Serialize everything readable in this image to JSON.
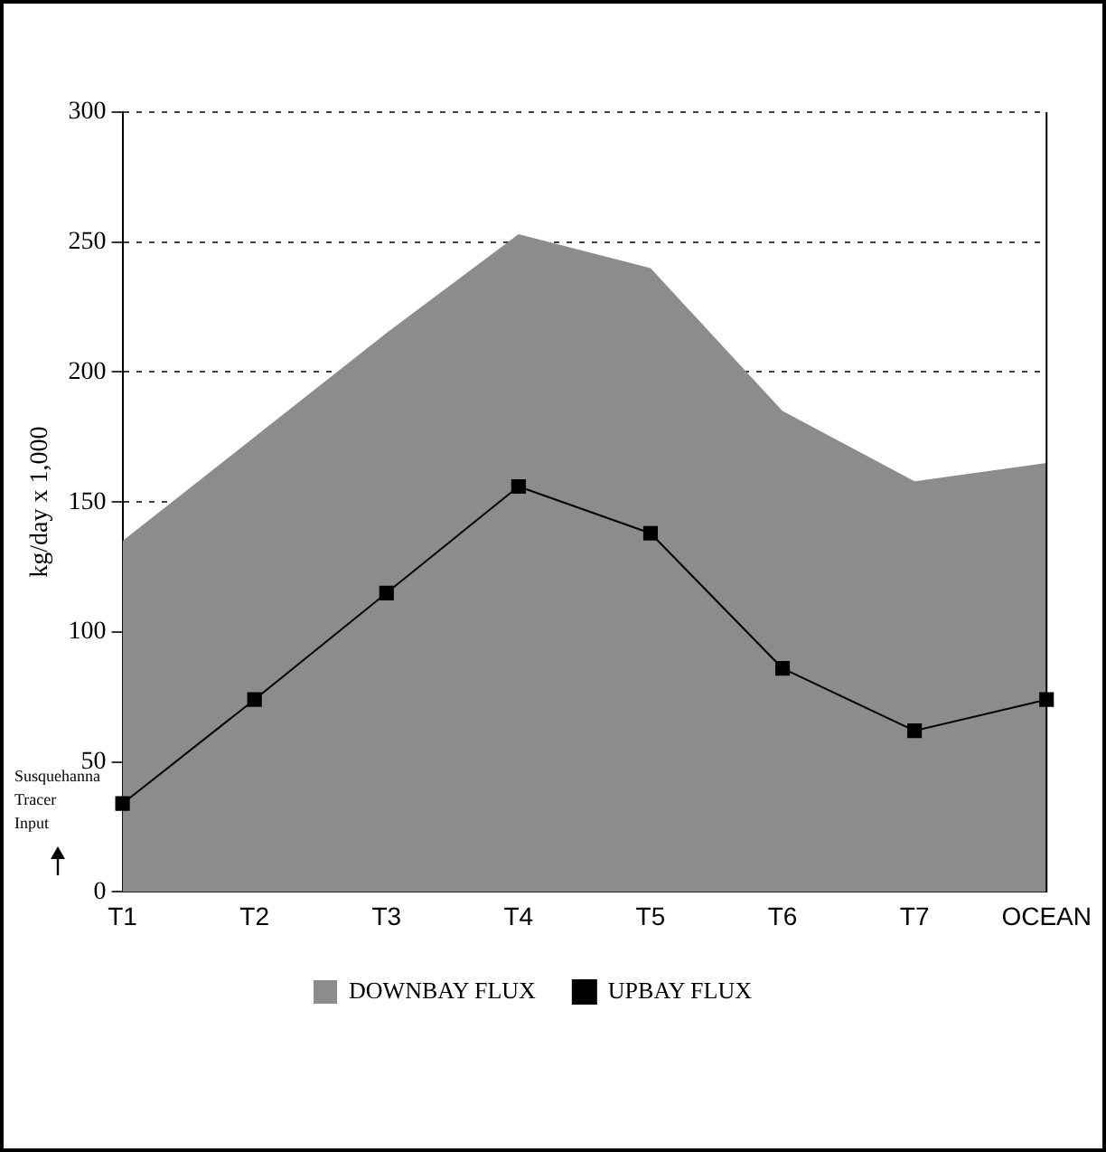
{
  "chart_data": {
    "type": "area",
    "ylabel": "kg/day x 1,000",
    "categories": [
      "T1",
      "T2",
      "T3",
      "T4",
      "T5",
      "T6",
      "T7",
      "OCEAN"
    ],
    "ylim": [
      0,
      300
    ],
    "yticks": [
      0,
      50,
      100,
      150,
      200,
      250,
      300
    ],
    "grid": "y",
    "legend": "bottom",
    "annotations": [
      "Susquehanna Tracer Input"
    ],
    "series": [
      {
        "name": "DOWNBAY FLUX",
        "color": "#8c8c8c",
        "values": [
          135,
          175,
          215,
          253,
          240,
          185,
          158,
          165
        ]
      },
      {
        "name": "UPBAY FLUX",
        "type": "line",
        "marker": "square",
        "color": "#000000",
        "values": [
          34,
          74,
          115,
          156,
          138,
          86,
          62,
          74
        ]
      }
    ]
  }
}
